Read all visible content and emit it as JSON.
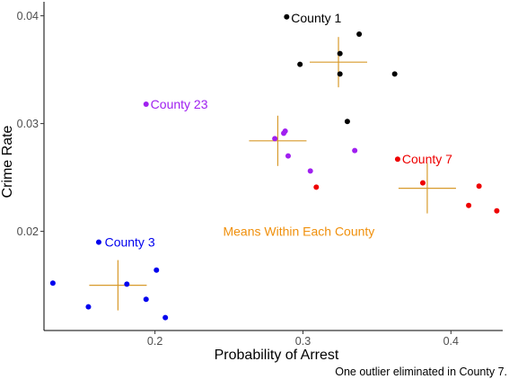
{
  "chart_data": {
    "type": "scatter",
    "xlabel": "Probability of Arrest",
    "ylabel": "Crime Rate",
    "caption": "One outlier eliminated in County 7.",
    "xlim": [
      0.125,
      0.435
    ],
    "ylim": [
      0.0108,
      0.0413
    ],
    "x_ticks": [
      0.2,
      0.3,
      0.4
    ],
    "x_tick_labels": [
      "0.2",
      "0.3",
      "0.4"
    ],
    "y_ticks": [
      0.02,
      0.03,
      0.04
    ],
    "y_tick_labels": [
      "0.02",
      "0.03",
      "0.04"
    ],
    "grid": false,
    "annotation": {
      "text": "Means Within Each County",
      "color": "#f0900c",
      "x": 0.246,
      "y": 0.02
    },
    "mean_marker_color": "#d89a2b",
    "series": [
      {
        "name": "County 1",
        "color": "#000000",
        "label": {
          "text": "County 1",
          "x": 0.292,
          "y": 0.0398
        },
        "points": [
          [
            0.289,
            0.0399
          ],
          [
            0.338,
            0.0383
          ],
          [
            0.325,
            0.0365
          ],
          [
            0.298,
            0.0355
          ],
          [
            0.325,
            0.0346
          ],
          [
            0.362,
            0.0346
          ],
          [
            0.33,
            0.0302
          ]
        ],
        "mean": [
          0.324,
          0.0357
        ]
      },
      {
        "name": "County 23",
        "color": "#a020f0",
        "label": {
          "text": "County 23",
          "x": 0.197,
          "y": 0.0318
        },
        "points": [
          [
            0.194,
            0.0318
          ],
          [
            0.288,
            0.0293
          ],
          [
            0.287,
            0.0291
          ],
          [
            0.281,
            0.0286
          ],
          [
            0.335,
            0.0275
          ],
          [
            0.29,
            0.027
          ],
          [
            0.305,
            0.0256
          ]
        ],
        "mean": [
          0.283,
          0.0284
        ]
      },
      {
        "name": "County 7",
        "color": "#ee0000",
        "label": {
          "text": "County 7",
          "x": 0.367,
          "y": 0.0267
        },
        "points": [
          [
            0.364,
            0.0267
          ],
          [
            0.381,
            0.0245
          ],
          [
            0.309,
            0.0241
          ],
          [
            0.419,
            0.0242
          ],
          [
            0.412,
            0.0224
          ],
          [
            0.431,
            0.0219
          ]
        ],
        "mean": [
          0.384,
          0.024
        ]
      },
      {
        "name": "County 3",
        "color": "#0000ee",
        "label": {
          "text": "County 3",
          "x": 0.166,
          "y": 0.019
        },
        "points": [
          [
            0.162,
            0.019
          ],
          [
            0.201,
            0.0164
          ],
          [
            0.131,
            0.0152
          ],
          [
            0.181,
            0.0151
          ],
          [
            0.194,
            0.0137
          ],
          [
            0.155,
            0.013
          ],
          [
            0.207,
            0.012
          ]
        ],
        "mean": [
          0.175,
          0.015
        ]
      }
    ]
  }
}
